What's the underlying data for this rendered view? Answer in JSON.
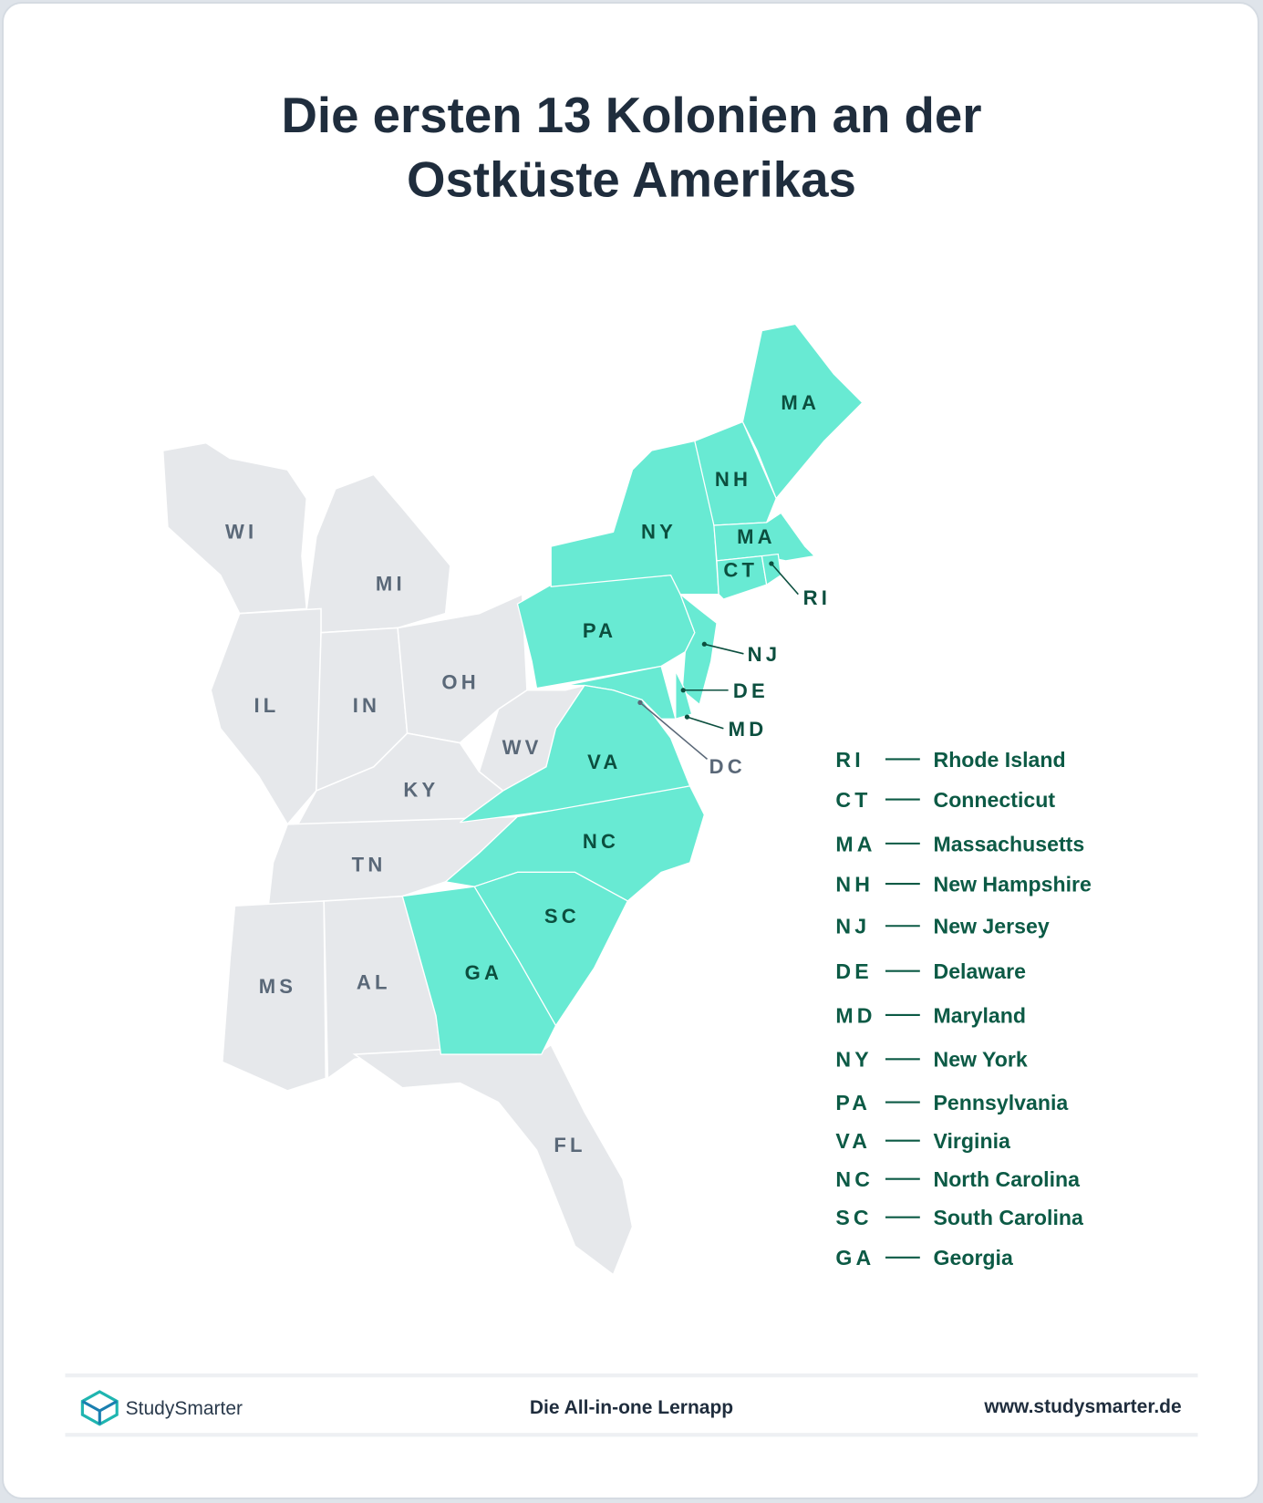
{
  "title": {
    "line1": "Die ersten 13 Kolonien an der",
    "line2": "Ostküste Amerikas"
  },
  "colors": {
    "colony": "#68ead3",
    "other_state": "#e6e8eb",
    "legend_text": "#0c5a45",
    "title": "#1f2d3d"
  },
  "map": {
    "other_states": [
      "WI",
      "MI",
      "IL",
      "IN",
      "OH",
      "WV",
      "KY",
      "TN",
      "MS",
      "AL",
      "FL"
    ],
    "colonies": [
      "MA",
      "NH",
      "NY",
      "MA",
      "CT",
      "RI",
      "PA",
      "NJ",
      "DE",
      "MD",
      "VA",
      "NC",
      "SC",
      "GA"
    ],
    "callouts": {
      "ri": "RI",
      "nj": "NJ",
      "de": "DE",
      "md": "MD",
      "dc": "DC"
    }
  },
  "legend": [
    {
      "abbr": "RI",
      "name": "Rhode Island"
    },
    {
      "abbr": "CT",
      "name": "Connecticut"
    },
    {
      "abbr": "MA",
      "name": "Massachusetts"
    },
    {
      "abbr": "NH",
      "name": "New Hampshire"
    },
    {
      "abbr": "NJ",
      "name": "New Jersey"
    },
    {
      "abbr": "DE",
      "name": "Delaware"
    },
    {
      "abbr": "MD",
      "name": "Maryland"
    },
    {
      "abbr": "NY",
      "name": "New York"
    },
    {
      "abbr": "PA",
      "name": "Pennsylvania"
    },
    {
      "abbr": "VA",
      "name": "Virginia"
    },
    {
      "abbr": "NC",
      "name": "North Carolina"
    },
    {
      "abbr": "SC",
      "name": "South Carolina"
    },
    {
      "abbr": "GA",
      "name": "Georgia"
    }
  ],
  "footer": {
    "brand": "StudySmarter",
    "tagline": "Die All-in-one Lernapp",
    "url": "www.studysmarter.de"
  }
}
